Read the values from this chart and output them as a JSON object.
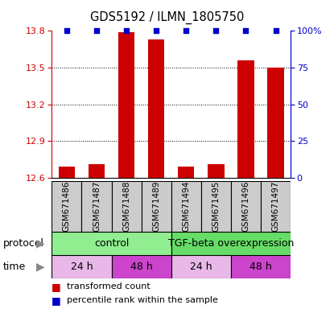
{
  "title": "GDS5192 / ILMN_1805750",
  "samples": [
    "GSM671486",
    "GSM671487",
    "GSM671488",
    "GSM671489",
    "GSM671494",
    "GSM671495",
    "GSM671496",
    "GSM671497"
  ],
  "red_values": [
    12.69,
    12.71,
    13.79,
    13.73,
    12.69,
    12.71,
    13.56,
    13.5
  ],
  "blue_values": [
    100,
    100,
    100,
    100,
    100,
    100,
    100,
    100
  ],
  "ylim_left": [
    12.6,
    13.8
  ],
  "ylim_right": [
    0,
    100
  ],
  "yticks_left": [
    12.6,
    12.9,
    13.2,
    13.5,
    13.8
  ],
  "yticks_right": [
    0,
    25,
    50,
    75,
    100
  ],
  "bar_color": "#cc0000",
  "blue_marker_color": "#0000cc",
  "background_color": "#ffffff",
  "left_axis_color": "#cc0000",
  "right_axis_color": "#0000cc",
  "sample_box_color": "#cccccc",
  "protocol_color_control": "#90EE90",
  "protocol_color_tgf": "#66DD66",
  "time_color_24": "#e8b8e8",
  "time_color_48": "#cc44cc",
  "protocol_label": "protocol",
  "time_label": "time",
  "legend_red_text": "transformed count",
  "legend_blue_text": "percentile rank within the sample"
}
